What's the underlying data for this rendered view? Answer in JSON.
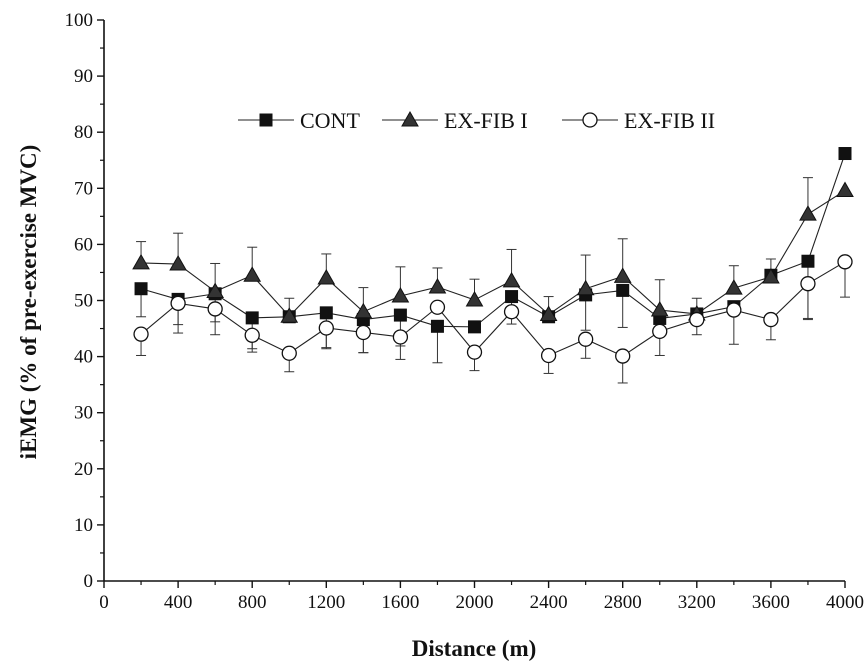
{
  "chart_data": {
    "type": "line",
    "title": "",
    "xlabel": "Distance (m)",
    "ylabel": "iEMG (% of pre-exercise MVC)",
    "xlim": [
      0,
      4000
    ],
    "ylim": [
      0,
      100
    ],
    "xticks": [
      0,
      400,
      800,
      1200,
      1600,
      2000,
      2400,
      2800,
      3200,
      3600,
      4000
    ],
    "yticks": [
      0,
      10,
      20,
      30,
      40,
      50,
      60,
      70,
      80,
      90,
      100
    ],
    "grid": false,
    "legend_position": "upper-center",
    "x": [
      200,
      400,
      600,
      800,
      1000,
      1200,
      1400,
      1600,
      1800,
      2000,
      2200,
      2400,
      2600,
      2800,
      3000,
      3200,
      3400,
      3600,
      3800,
      4000
    ],
    "series": [
      {
        "name": "CONT",
        "marker": "square-filled",
        "values": [
          52.1,
          50.2,
          51.2,
          46.9,
          47.1,
          47.8,
          46.6,
          47.4,
          45.4,
          45.3,
          50.7,
          47.1,
          51.0,
          51.8,
          46.8,
          47.6,
          48.9,
          54.5,
          57.0,
          76.2
        ],
        "err_up": [
          0,
          0,
          0,
          0,
          0,
          0,
          0,
          0,
          0,
          0,
          0,
          0,
          0,
          0,
          0,
          0,
          0,
          0,
          0,
          0
        ],
        "err_down": [
          5.0,
          4.5,
          5.0,
          5.5,
          0,
          6.2,
          5.9,
          5.5,
          6.5,
          0,
          4.9,
          0,
          6.3,
          6.6,
          0,
          3.7,
          0,
          0,
          10.4,
          0
        ]
      },
      {
        "name": "EX-FIB I",
        "marker": "triangle-filled",
        "values": [
          56.7,
          56.5,
          51.6,
          54.5,
          47.2,
          54.0,
          48.0,
          50.8,
          52.4,
          50.1,
          53.5,
          47.5,
          52.1,
          54.3,
          48.3,
          47.6,
          52.2,
          54.2,
          65.4,
          69.6
        ],
        "err_up": [
          3.8,
          5.5,
          5.0,
          5.0,
          3.2,
          4.3,
          4.3,
          5.2,
          3.4,
          3.7,
          5.6,
          3.2,
          6.0,
          6.7,
          5.4,
          2.8,
          4.0,
          3.2,
          6.5,
          0
        ],
        "err_down": [
          0,
          0,
          0,
          0,
          0,
          0,
          0,
          0,
          0,
          0,
          0,
          0,
          0,
          0,
          0,
          0,
          0,
          0,
          0,
          0
        ]
      },
      {
        "name": "EX-FIB II",
        "marker": "circle-open",
        "values": [
          44.0,
          49.5,
          48.5,
          43.8,
          40.6,
          45.1,
          44.3,
          43.5,
          48.8,
          40.8,
          48.0,
          40.2,
          43.1,
          40.1,
          44.5,
          46.6,
          48.3,
          46.6,
          53.0,
          56.9
        ],
        "err_up": [
          0,
          0,
          0,
          0,
          0,
          0,
          0,
          0,
          0,
          0,
          0,
          0,
          0,
          0,
          0,
          0,
          0,
          0,
          0,
          0
        ],
        "err_down": [
          3.8,
          5.3,
          4.6,
          3.0,
          3.3,
          3.7,
          3.6,
          4.0,
          0,
          3.3,
          0,
          3.2,
          3.4,
          4.8,
          4.3,
          0,
          6.1,
          3.6,
          6.2,
          6.3
        ]
      }
    ]
  }
}
